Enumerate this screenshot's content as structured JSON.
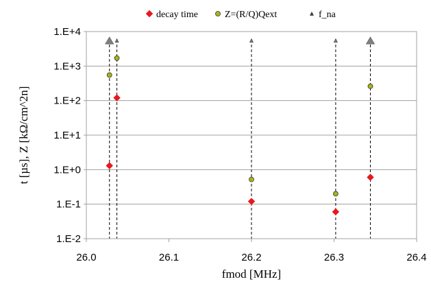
{
  "chart_data": {
    "type": "scatter",
    "xlabel": "fmod [MHz]",
    "ylabel": "t [µs], Z [kΩ/cm^2n]",
    "x_scale": "linear",
    "y_scale": "log",
    "xlim": [
      26.0,
      26.4
    ],
    "ylim": [
      0.01,
      10000
    ],
    "x_ticks": [
      26.0,
      26.1,
      26.2,
      26.3,
      26.4
    ],
    "x_tick_labels": [
      "26.0",
      "26.1",
      "26.2",
      "26.3",
      "26.4"
    ],
    "y_ticks": [
      0.01,
      0.1,
      1,
      10,
      100,
      1000,
      10000
    ],
    "y_tick_labels": [
      "1.E-2",
      "1.E-1",
      "1.E+0",
      "1.E+1",
      "1.E+2",
      "1.E+3",
      "1.E+4"
    ],
    "grid": "horizontal",
    "legend_position": "top",
    "vertical_dashed_lines_at_x": [
      26.028,
      26.037,
      26.2,
      26.302,
      26.344
    ],
    "series": [
      {
        "name": "decay time",
        "marker": "diamond",
        "color": "#e8181c",
        "points": [
          {
            "x": 26.028,
            "y": 1.3
          },
          {
            "x": 26.037,
            "y": 120
          },
          {
            "x": 26.2,
            "y": 0.12
          },
          {
            "x": 26.302,
            "y": 0.06
          },
          {
            "x": 26.344,
            "y": 0.6
          }
        ]
      },
      {
        "name": "Z=(R/Q)Qext",
        "marker": "circle",
        "color": "#a8b417",
        "points": [
          {
            "x": 26.028,
            "y": 550
          },
          {
            "x": 26.037,
            "y": 1700
          },
          {
            "x": 26.2,
            "y": 0.52
          },
          {
            "x": 26.302,
            "y": 0.2
          },
          {
            "x": 26.344,
            "y": 260
          }
        ]
      },
      {
        "name": "f_na",
        "marker": "triangle",
        "color": "#808080",
        "points": [
          {
            "x": 26.028,
            "y": 5500,
            "big": true
          },
          {
            "x": 26.037,
            "y": 5500,
            "big": false
          },
          {
            "x": 26.2,
            "y": 5500,
            "big": false
          },
          {
            "x": 26.302,
            "y": 5500,
            "big": false
          },
          {
            "x": 26.344,
            "y": 5500,
            "big": true
          }
        ]
      }
    ]
  }
}
